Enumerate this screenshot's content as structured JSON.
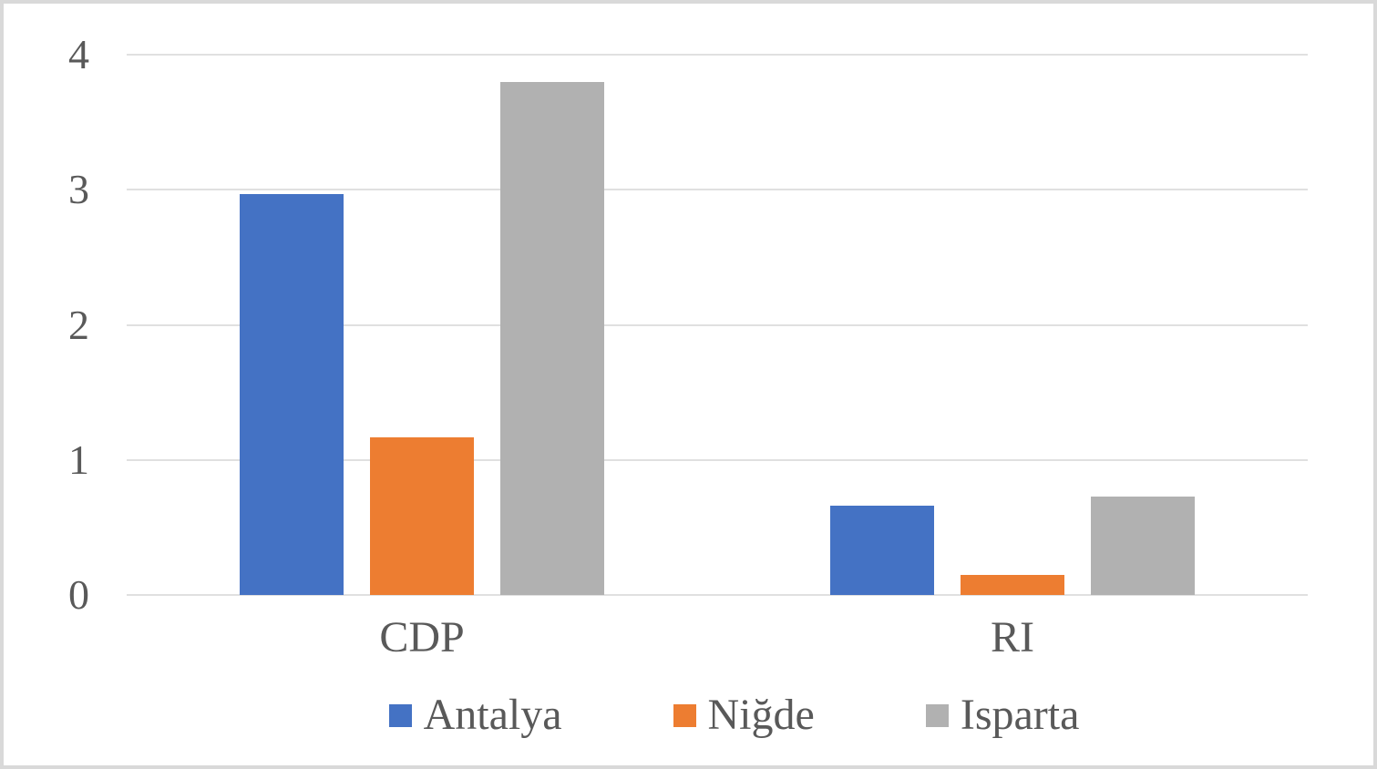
{
  "chart_data": {
    "type": "bar",
    "title": "",
    "xlabel": "",
    "ylabel": "",
    "categories": [
      "CDP",
      "RI"
    ],
    "series": [
      {
        "name": "Antalya",
        "color": "#4472C4",
        "values": [
          2.97,
          0.66
        ]
      },
      {
        "name": "Niğde",
        "color": "#ED7D31",
        "values": [
          1.17,
          0.15
        ]
      },
      {
        "name": "Isparta",
        "color": "#B1B1B1",
        "values": [
          3.8,
          0.73
        ]
      }
    ],
    "ylim": [
      0,
      4
    ],
    "yticks": [
      "0",
      "1",
      "2",
      "3",
      "4"
    ],
    "grid": true,
    "legend_position": "bottom"
  },
  "style": {
    "gridline_color": "#E0E0E0",
    "axis_text_color": "#595959",
    "background": "#FFFFFF",
    "frame_border_color": "#D9D9D9"
  }
}
